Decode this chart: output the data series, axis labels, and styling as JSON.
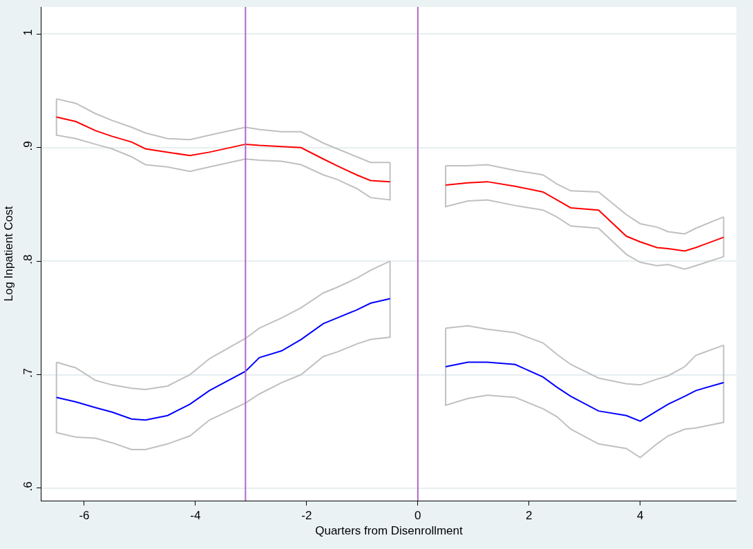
{
  "chart_data": {
    "type": "line",
    "xlabel": "Quarters from Disenrollment",
    "ylabel": "Log Inpatient Cost",
    "xlim": [
      -6.77,
      5.73
    ],
    "xticks": [
      -6,
      -4,
      -2,
      0,
      2,
      4
    ],
    "ylim": [
      0.589,
      1.024
    ],
    "yticks": [
      {
        "value": 0.6,
        "label": ".6"
      },
      {
        "value": 0.7,
        "label": ".7"
      },
      {
        "value": 0.8,
        "label": ".8"
      },
      {
        "value": 0.9,
        "label": ".9"
      },
      {
        "value": 1,
        "label": "1"
      }
    ],
    "grid": "y",
    "line_style": "solid",
    "marker": "none",
    "ref_lines": [
      {
        "axis": "x",
        "value": -3.1,
        "color": "#b066c4"
      },
      {
        "axis": "x",
        "value": 0,
        "color": "#b066c4"
      }
    ],
    "series": [
      {
        "color": "#c0c0c0",
        "x": [
          -6.5,
          -6.15,
          -5.8,
          -5.5,
          -5.15,
          -4.9,
          -4.5,
          -4.1,
          -3.75,
          -3.1,
          -2.85,
          -2.45,
          -2.1,
          -1.7,
          -1.45,
          -1.1,
          -0.85,
          -0.5
        ],
        "values": [
          0.943,
          0.939,
          0.93,
          0.924,
          0.918,
          0.913,
          0.908,
          0.907,
          0.911,
          0.918,
          0.916,
          0.914,
          0.914,
          0.904,
          0.899,
          0.892,
          0.887,
          0.887
        ]
      },
      {
        "color": "#c0c0c0",
        "x": [
          -6.5,
          -6.5,
          -6.15,
          -5.8,
          -5.5,
          -5.15,
          -4.9,
          -4.5,
          -4.1,
          -3.75,
          -3.1,
          -2.85,
          -2.45,
          -2.1,
          -1.7,
          -1.45,
          -1.1,
          -0.85,
          -0.5,
          -0.5
        ],
        "values": [
          0.943,
          0.911,
          0.908,
          0.903,
          0.899,
          0.892,
          0.885,
          0.883,
          0.879,
          0.883,
          0.89,
          0.889,
          0.888,
          0.885,
          0.876,
          0.872,
          0.864,
          0.856,
          0.854,
          0.887
        ]
      },
      {
        "color": "#c0c0c0",
        "x": [
          -6.5,
          -6.15,
          -5.8,
          -5.5,
          -5.15,
          -4.9,
          -4.5,
          -4.1,
          -3.75,
          -3.1,
          -2.85,
          -2.45,
          -2.1,
          -1.7,
          -1.45,
          -1.1,
          -0.85,
          -0.5
        ],
        "values": [
          0.711,
          0.706,
          0.695,
          0.691,
          0.688,
          0.687,
          0.69,
          0.7,
          0.714,
          0.732,
          0.741,
          0.75,
          0.759,
          0.772,
          0.777,
          0.785,
          0.792,
          0.8
        ]
      },
      {
        "color": "#c0c0c0",
        "x": [
          -6.5,
          -6.5,
          -6.15,
          -5.8,
          -5.5,
          -5.15,
          -4.9,
          -4.5,
          -4.1,
          -3.75,
          -3.1,
          -2.85,
          -2.45,
          -2.1,
          -1.7,
          -1.45,
          -1.1,
          -0.85,
          -0.5,
          -0.5
        ],
        "values": [
          0.711,
          0.649,
          0.645,
          0.644,
          0.64,
          0.634,
          0.634,
          0.639,
          0.646,
          0.66,
          0.675,
          0.683,
          0.693,
          0.7,
          0.716,
          0.72,
          0.727,
          0.731,
          0.733,
          0.8
        ]
      },
      {
        "color": "#c0c0c0",
        "x": [
          0.5,
          0.9,
          1.25,
          1.75,
          2.25,
          2.5,
          2.75,
          3.25,
          3.75,
          4.0,
          4.3,
          4.5,
          4.8,
          5.0,
          5.5
        ],
        "values": [
          0.884,
          0.884,
          0.885,
          0.88,
          0.876,
          0.868,
          0.862,
          0.861,
          0.841,
          0.833,
          0.83,
          0.826,
          0.824,
          0.829,
          0.839
        ]
      },
      {
        "color": "#c0c0c0",
        "x": [
          0.5,
          0.5,
          0.9,
          1.25,
          1.75,
          2.25,
          2.5,
          2.75,
          3.25,
          3.75,
          4.0,
          4.3,
          4.5,
          4.8,
          5.0,
          5.5,
          5.5
        ],
        "values": [
          0.884,
          0.848,
          0.853,
          0.854,
          0.849,
          0.845,
          0.839,
          0.831,
          0.829,
          0.806,
          0.799,
          0.796,
          0.797,
          0.793,
          0.796,
          0.804,
          0.839
        ]
      },
      {
        "color": "#c0c0c0",
        "x": [
          0.5,
          0.9,
          1.25,
          1.75,
          2.25,
          2.5,
          2.75,
          3.25,
          3.75,
          4.0,
          4.3,
          4.5,
          4.8,
          5.0,
          5.5
        ],
        "values": [
          0.741,
          0.743,
          0.74,
          0.737,
          0.728,
          0.718,
          0.709,
          0.697,
          0.692,
          0.691,
          0.696,
          0.699,
          0.707,
          0.717,
          0.726
        ]
      },
      {
        "color": "#c0c0c0",
        "x": [
          0.5,
          0.5,
          0.9,
          1.25,
          1.75,
          2.25,
          2.5,
          2.75,
          3.25,
          3.75,
          4.0,
          4.3,
          4.5,
          4.8,
          5.0,
          5.5,
          5.5
        ],
        "values": [
          0.741,
          0.673,
          0.679,
          0.682,
          0.68,
          0.67,
          0.663,
          0.652,
          0.639,
          0.635,
          0.627,
          0.639,
          0.646,
          0.652,
          0.653,
          0.658,
          0.726
        ]
      },
      {
        "color": "#ff0000",
        "x": [
          -6.5,
          -6.15,
          -5.8,
          -5.5,
          -5.15,
          -4.9,
          -4.5,
          -4.1,
          -3.75,
          -3.1,
          -2.85,
          -2.45,
          -2.1,
          -1.7,
          -1.45,
          -1.1,
          -0.85,
          -0.5
        ],
        "values": [
          0.927,
          0.923,
          0.915,
          0.91,
          0.905,
          0.899,
          0.896,
          0.893,
          0.896,
          0.903,
          0.902,
          0.901,
          0.9,
          0.89,
          0.884,
          0.876,
          0.871,
          0.87
        ]
      },
      {
        "color": "#0000ff",
        "x": [
          -6.5,
          -6.15,
          -5.8,
          -5.5,
          -5.15,
          -4.9,
          -4.5,
          -4.1,
          -3.75,
          -3.1,
          -2.85,
          -2.45,
          -2.1,
          -1.7,
          -1.45,
          -1.1,
          -0.85,
          -0.5
        ],
        "values": [
          0.68,
          0.676,
          0.671,
          0.667,
          0.661,
          0.66,
          0.664,
          0.674,
          0.686,
          0.703,
          0.715,
          0.721,
          0.731,
          0.745,
          0.75,
          0.757,
          0.763,
          0.767
        ]
      },
      {
        "color": "#ff0000",
        "x": [
          0.5,
          0.9,
          1.25,
          1.75,
          2.25,
          2.5,
          2.75,
          3.25,
          3.75,
          4.0,
          4.3,
          4.5,
          4.8,
          5.0,
          5.5
        ],
        "values": [
          0.867,
          0.869,
          0.87,
          0.866,
          0.861,
          0.854,
          0.847,
          0.845,
          0.822,
          0.817,
          0.812,
          0.811,
          0.809,
          0.812,
          0.821
        ]
      },
      {
        "color": "#0000ff",
        "x": [
          0.5,
          0.9,
          1.25,
          1.75,
          2.25,
          2.5,
          2.75,
          3.25,
          3.75,
          4.0,
          4.3,
          4.5,
          4.8,
          5.0,
          5.5
        ],
        "values": [
          0.707,
          0.711,
          0.711,
          0.709,
          0.698,
          0.689,
          0.681,
          0.668,
          0.664,
          0.659,
          0.668,
          0.674,
          0.681,
          0.686,
          0.693
        ]
      }
    ]
  }
}
